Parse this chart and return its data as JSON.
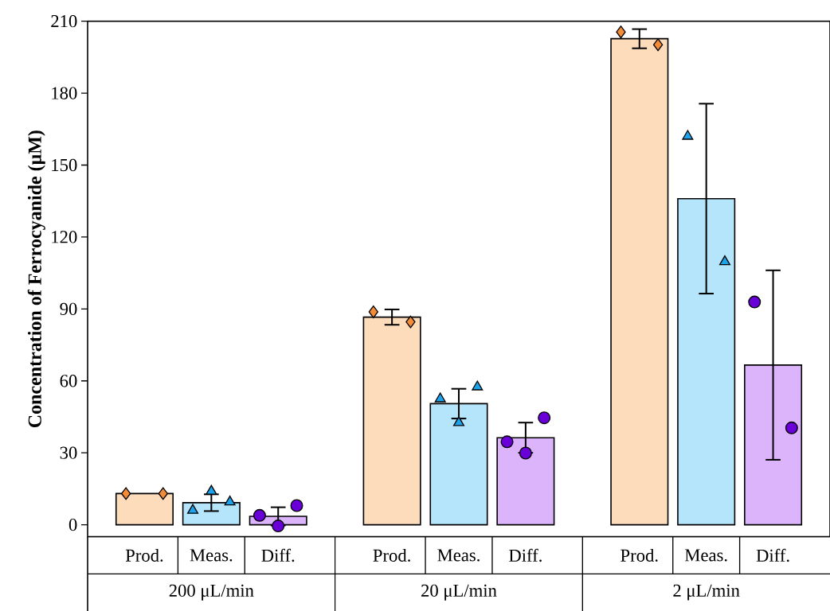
{
  "chart_data": {
    "type": "bar",
    "ylabel": "**Concentration of Ferrocyanide (μM)**",
    "categories": [
      "200 μL/min",
      "20 μL/min",
      "2 μL/min"
    ],
    "ylim": [
      -5,
      210
    ],
    "yticks": [
      0,
      30,
      60,
      90,
      120,
      150,
      180,
      210
    ],
    "legend": "bottom",
    "grid": false,
    "series": [
      {
        "name": "Prod.",
        "color": "#fddcbc",
        "values": [
          13,
          86.6,
          202.7
        ],
        "errors": [
          null,
          3.2,
          4
        ]
      },
      {
        "name": "Meas.",
        "color": "#b5e5fb",
        "values": [
          9.2,
          50.5,
          136
        ],
        "errors": [
          3.5,
          6.2,
          39.6
        ]
      },
      {
        "name": "Diff.",
        "color": "#dcb4fb",
        "values": [
          3.5,
          36.3,
          66.6
        ],
        "errors": [
          3.8,
          6.3,
          39.5
        ]
      },
      {
        "type": "scatter",
        "marker": "diamond",
        "color": "#f28c38",
        "x": [
          "200 μL/min",
          "200 μL/min",
          "20 μL/min",
          "20 μL/min",
          "2 μL/min",
          "2 μL/min"
        ],
        "values": [
          13,
          13,
          88.8,
          84.6,
          205.5,
          200.2
        ]
      },
      {
        "type": "scatter",
        "marker": "triangle",
        "color": "#1ca3ec",
        "x": [
          "200 μL/min",
          "200 μL/min",
          "200 μL/min",
          "20 μL/min",
          "20 μL/min",
          "20 μL/min",
          "2 μL/min",
          "2 μL/min"
        ],
        "values": [
          6,
          14,
          9.5,
          52.5,
          42.6,
          57.5,
          162,
          109.7
        ]
      },
      {
        "type": "scatter",
        "marker": "circle",
        "color": "#6a00d8",
        "x": [
          "200 μL/min",
          "200 μL/min",
          "200 μL/min",
          "20 μL/min",
          "20 μL/min",
          "20 μL/min",
          "2 μL/min",
          "2 μL/min"
        ],
        "values": [
          3.9,
          -0.5,
          8,
          34.6,
          29.9,
          44.6,
          92.9,
          40.4
        ]
      }
    ]
  }
}
